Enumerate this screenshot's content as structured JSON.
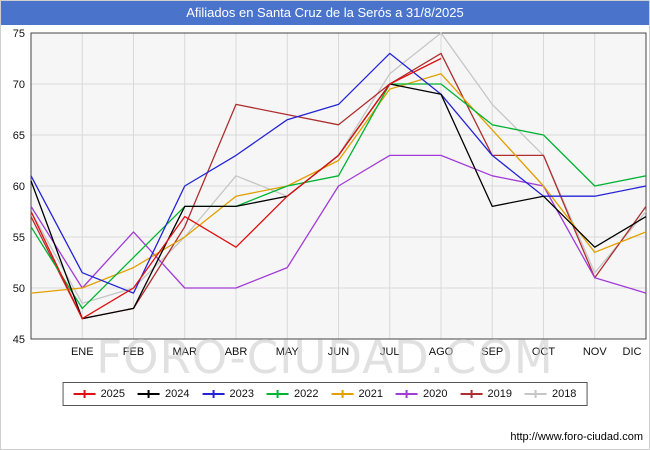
{
  "title": "Afiliados en Santa Cruz de la Serós a 31/8/2025",
  "watermark": "FORO-CIUDAD.COM",
  "footer": {
    "url_label": "http://www.foro-ciudad.com"
  },
  "colors": {
    "title_bar_bg": "#4a74cc",
    "plot_bg": "#f6f6f6",
    "grid": "#d9d9d9",
    "plot_border": "#444444",
    "watermark": "#c9c9c9"
  },
  "chart_data": {
    "type": "line",
    "title": "Afiliados en Santa Cruz de la Serós a 31/8/2025",
    "note": "Each series has a leading value plotted at the left axis edge before ENE; 2025 ends at AGO (data to 31/8/2025). Values estimated from gridlines.",
    "categories": [
      "ENE",
      "FEB",
      "MAR",
      "ABR",
      "MAY",
      "JUN",
      "JUL",
      "AGO",
      "SEP",
      "OCT",
      "NOV",
      "DIC"
    ],
    "ylim": [
      45,
      75
    ],
    "ytick_step": 5,
    "yticks": [
      45,
      50,
      55,
      60,
      65,
      70,
      75
    ],
    "grid": true,
    "legend_position": "bottom",
    "xlabel": "",
    "ylabel": "",
    "series": [
      {
        "name": "2025",
        "color": "#e01111",
        "values": [
          57.5,
          47,
          50,
          57,
          54,
          59,
          63,
          70,
          72.5
        ]
      },
      {
        "name": "2024",
        "color": "#000000",
        "values": [
          60.5,
          47,
          48,
          58,
          58,
          59,
          63,
          70,
          69,
          58,
          59,
          54,
          57
        ]
      },
      {
        "name": "2023",
        "color": "#2424d6",
        "values": [
          61,
          51.5,
          49.5,
          60,
          63,
          66.5,
          68,
          73,
          69,
          63,
          59,
          59,
          60
        ]
      },
      {
        "name": "2022",
        "color": "#00b433",
        "values": [
          56,
          48,
          53,
          58,
          58,
          60,
          61,
          70,
          70,
          66,
          65,
          60,
          61
        ]
      },
      {
        "name": "2021",
        "color": "#e2a000",
        "values": [
          49.5,
          50,
          52,
          55,
          59,
          60,
          62.5,
          69.5,
          71,
          65.5,
          60,
          53.5,
          55.5
        ]
      },
      {
        "name": "2020",
        "color": "#a23cd8",
        "values": [
          58,
          50,
          55.5,
          50,
          50,
          52,
          60,
          63,
          63,
          61,
          60,
          51,
          49.5
        ]
      },
      {
        "name": "2019",
        "color": "#ad2f2f",
        "values": [
          57,
          47,
          48,
          56,
          68,
          67,
          66,
          70,
          73,
          63,
          63,
          51,
          58
        ]
      },
      {
        "name": "2018",
        "color": "#c6c6c6",
        "values": [
          57.5,
          48.5,
          50,
          55,
          61,
          59,
          63,
          71,
          75,
          68,
          63,
          51.5,
          57.5
        ]
      }
    ]
  }
}
